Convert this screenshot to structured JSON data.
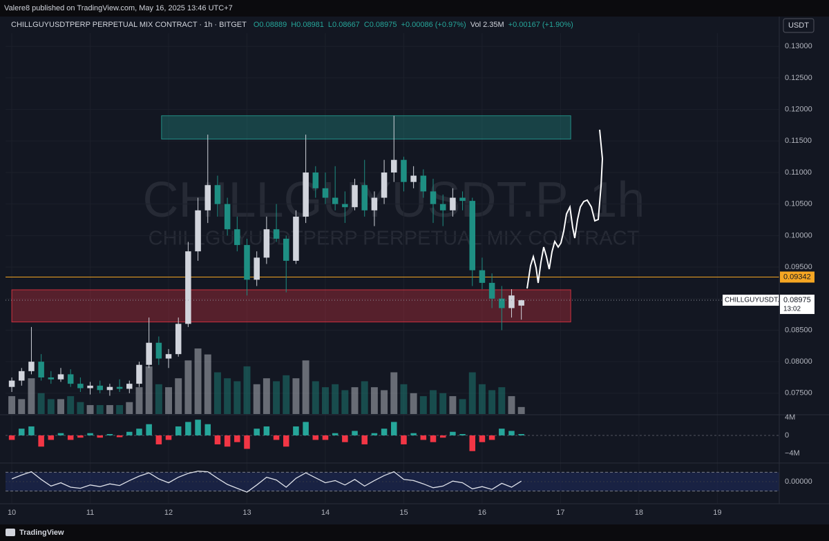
{
  "header": {
    "published": "Valere8 published on TradingView.com, May 16, 2025 13:46 UTC+7",
    "symbol": "CHILLGUYUSDTPERP PERPETUAL MIX CONTRACT · 1h · BITGET",
    "ohlc": [
      "O0.08889",
      "H0.08981",
      "L0.08667",
      "C0.08975"
    ],
    "change": "+0.00086 (+0.97%)",
    "volume": "Vol 2.35M",
    "volume_change": "+0.00167 (+1.90%)",
    "currency": "USDT",
    "watermark": "CHILLGUYUSDT.P, 1h",
    "watermark_sub": "CHILLGUYUSDTPERP PERPETUAL MIX CONTRACT",
    "footer": "TradingView"
  },
  "chart_data": {
    "type": "candlestick",
    "up_color": "#d1d4dc",
    "down_color": "#1e8f83",
    "x": [
      10,
      10.125,
      10.25,
      10.375,
      10.5,
      10.625,
      10.75,
      10.875,
      11,
      11.125,
      11.25,
      11.375,
      11.5,
      11.625,
      11.75,
      11.875,
      12,
      12.125,
      12.25,
      12.375,
      12.5,
      12.625,
      12.75,
      12.875,
      13,
      13.125,
      13.25,
      13.375,
      13.5,
      13.625,
      13.75,
      13.875,
      14,
      14.125,
      14.25,
      14.375,
      14.5,
      14.625,
      14.75,
      14.875,
      15,
      15.125,
      15.25,
      15.375,
      15.5,
      15.625,
      15.75,
      15.875,
      16,
      16.125,
      16.25,
      16.375,
      16.5
    ],
    "open": [
      0.076,
      0.077,
      0.0785,
      0.08,
      0.0775,
      0.0772,
      0.078,
      0.0765,
      0.0758,
      0.0762,
      0.0755,
      0.076,
      0.0757,
      0.0765,
      0.0795,
      0.083,
      0.0805,
      0.0812,
      0.086,
      0.0975,
      0.104,
      0.108,
      0.105,
      0.101,
      0.0985,
      0.093,
      0.0965,
      0.101,
      0.0995,
      0.096,
      0.103,
      0.11,
      0.1075,
      0.106,
      0.105,
      0.1045,
      0.108,
      0.104,
      0.106,
      0.11,
      0.112,
      0.1085,
      0.1095,
      0.107,
      0.105,
      0.104,
      0.106,
      0.1055,
      0.0945,
      0.0925,
      0.09,
      0.0885,
      0.08889
    ],
    "high": [
      0.0775,
      0.079,
      0.0855,
      0.0812,
      0.0785,
      0.079,
      0.0788,
      0.0775,
      0.0768,
      0.077,
      0.0765,
      0.0772,
      0.077,
      0.08,
      0.087,
      0.084,
      0.082,
      0.087,
      0.099,
      0.106,
      0.116,
      0.1095,
      0.106,
      0.103,
      0.0995,
      0.0975,
      0.103,
      0.105,
      0.1,
      0.104,
      0.116,
      0.111,
      0.11,
      0.111,
      0.107,
      0.109,
      0.112,
      0.107,
      0.112,
      0.119,
      0.1125,
      0.111,
      0.1105,
      0.109,
      0.1065,
      0.1075,
      0.107,
      0.106,
      0.0965,
      0.094,
      0.092,
      0.0915,
      0.08981
    ],
    "low": [
      0.0752,
      0.0762,
      0.078,
      0.077,
      0.0765,
      0.0768,
      0.076,
      0.0752,
      0.0748,
      0.075,
      0.0746,
      0.0752,
      0.075,
      0.076,
      0.079,
      0.0795,
      0.079,
      0.0808,
      0.0855,
      0.096,
      0.102,
      0.103,
      0.1,
      0.0975,
      0.0905,
      0.092,
      0.0955,
      0.099,
      0.091,
      0.0955,
      0.102,
      0.106,
      0.105,
      0.104,
      0.102,
      0.104,
      0.103,
      0.1015,
      0.105,
      0.1085,
      0.107,
      0.1075,
      0.106,
      0.102,
      0.1015,
      0.103,
      0.104,
      0.092,
      0.0915,
      0.0885,
      0.085,
      0.087,
      0.08667
    ],
    "close": [
      0.077,
      0.0785,
      0.08,
      0.0775,
      0.0772,
      0.078,
      0.0765,
      0.0758,
      0.0762,
      0.0755,
      0.076,
      0.0757,
      0.0765,
      0.0795,
      0.083,
      0.0805,
      0.0812,
      0.086,
      0.0975,
      0.104,
      0.108,
      0.105,
      0.101,
      0.0985,
      0.093,
      0.0965,
      0.101,
      0.0995,
      0.096,
      0.103,
      0.11,
      0.1075,
      0.106,
      0.105,
      0.1045,
      0.108,
      0.104,
      0.106,
      0.11,
      0.112,
      0.1085,
      0.1095,
      0.107,
      0.105,
      0.104,
      0.106,
      0.1055,
      0.0945,
      0.0925,
      0.09,
      0.0885,
      0.0905,
      0.08975
    ],
    "volume": [
      6,
      5,
      12,
      7,
      5,
      5,
      6,
      4,
      3,
      3,
      3,
      3,
      4,
      9,
      16,
      10,
      9,
      12,
      18,
      22,
      20,
      14,
      12,
      11,
      16,
      10,
      12,
      11,
      13,
      12,
      18,
      11,
      9,
      10,
      8,
      9,
      11,
      9,
      8,
      14,
      10,
      7,
      6,
      8,
      7,
      6,
      5,
      14,
      10,
      8,
      9,
      6,
      2.35
    ],
    "xlim": [
      9.92,
      19.79
    ],
    "xticks": [
      10,
      11,
      12,
      13,
      14,
      15,
      16,
      17,
      18,
      19
    ],
    "ylim": [
      0.0717,
      0.1321
    ],
    "yticks": [
      {
        "value": 0.13,
        "label": "0.13000"
      },
      {
        "value": 0.125,
        "label": "0.12500"
      },
      {
        "value": 0.12,
        "label": "0.12000"
      },
      {
        "value": 0.115,
        "label": "0.11500"
      },
      {
        "value": 0.11,
        "label": "0.11000"
      },
      {
        "value": 0.105,
        "label": "0.10500"
      },
      {
        "value": 0.1,
        "label": "0.10000"
      },
      {
        "value": 0.095,
        "label": "0.09500"
      },
      {
        "value": 0.09,
        "label": "0.09000"
      },
      {
        "value": 0.085,
        "label": "0.08500"
      },
      {
        "value": 0.08,
        "label": "0.08000"
      },
      {
        "value": 0.075,
        "label": "0.07500"
      }
    ],
    "zones": [
      {
        "from": 11.91,
        "to": 17.13,
        "top": 0.119,
        "bottom": 0.1153,
        "color": "#26a69a"
      },
      {
        "from": 10.0,
        "to": 17.13,
        "top": 0.0914,
        "bottom": 0.0863,
        "color": "#f23645"
      }
    ],
    "level": {
      "value": 0.09342,
      "color": "#f5a623"
    },
    "last": {
      "name": "CHILLGUYUSDT.P",
      "value": 0.08975,
      "countdown": "13:02"
    },
    "delta": {
      "values": [
        -1,
        1.5,
        2,
        -2.5,
        -1,
        0.5,
        -1,
        -0.5,
        0.5,
        -0.5,
        0.3,
        -0.4,
        0.8,
        1.5,
        2.5,
        -2,
        -1,
        2,
        3,
        3.5,
        2.5,
        -2,
        -2.5,
        -1.5,
        -3,
        1.5,
        2,
        -1,
        -2.5,
        2,
        3,
        -1,
        -1,
        0.5,
        -1.5,
        1,
        -2,
        0.5,
        1.5,
        3,
        -2,
        0.5,
        -1,
        -1.5,
        -0.5,
        0.8,
        0.3,
        -3.5,
        -1.5,
        -1,
        1.5,
        1,
        0.3
      ],
      "ylim": [
        -5.7,
        4.15
      ],
      "yticks": [
        {
          "value": 4,
          "label": "4M"
        },
        0,
        {
          "value": -4,
          "label": "−4M"
        }
      ],
      "up_color": "#26a69a",
      "down_color": "#f23645"
    },
    "oscillator": {
      "values": [
        0.0005,
        0.0012,
        0.0018,
        0.0004,
        -0.0008,
        -0.0002,
        -0.001,
        -0.0012,
        -0.0006,
        -0.0009,
        -0.0004,
        -0.0007,
        0.0002,
        0.001,
        0.0016,
        0.0005,
        -0.0002,
        0.0008,
        0.0015,
        0.0019,
        0.0018,
        0.0006,
        -0.0005,
        -0.0012,
        -0.0019,
        -0.0006,
        0.0008,
        0.0003,
        -0.001,
        0.0006,
        0.0016,
        0.0007,
        -0.0002,
        0.0002,
        -0.0006,
        0.0004,
        -0.0008,
        0.0002,
        0.0011,
        0.0018,
        0.0004,
        0.0002,
        -0.0004,
        -0.0011,
        -0.0008,
        0.0001,
        -0.0002,
        -0.0013,
        -0.0009,
        -0.0014,
        -0.0003,
        -0.001,
        0.0001
      ],
      "ylim": [
        -0.003,
        0.003
      ],
      "yticks": [
        {
          "value": 0,
          "label": "0.00000"
        }
      ],
      "band": [
        -0.0017,
        0.0017
      ],
      "color": "#e0e3eb"
    }
  }
}
